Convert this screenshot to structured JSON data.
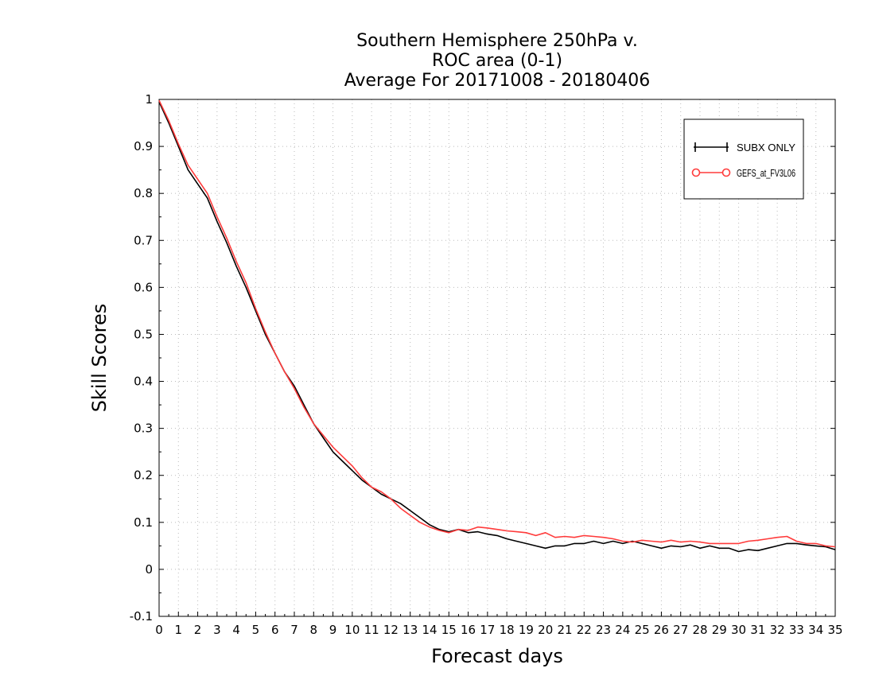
{
  "chart_data": {
    "type": "line",
    "title": [
      "Southern Hemisphere 250hPa v.",
      "ROC area (0-1)",
      "Average For 20171008 - 20180406"
    ],
    "xlabel": "Forecast days",
    "ylabel": "Skill Scores",
    "xlim": [
      0,
      35
    ],
    "ylim": [
      -0.1,
      1
    ],
    "xticks": [
      0,
      1,
      2,
      3,
      4,
      5,
      6,
      7,
      8,
      9,
      10,
      11,
      12,
      13,
      14,
      15,
      16,
      17,
      18,
      19,
      20,
      21,
      22,
      23,
      24,
      25,
      26,
      27,
      28,
      29,
      30,
      31,
      32,
      33,
      34,
      35
    ],
    "yticks": [
      -0.1,
      0,
      0.1,
      0.2,
      0.3,
      0.4,
      0.5,
      0.6,
      0.7,
      0.8,
      0.9,
      1
    ],
    "ytick_labels": [
      "-0.1",
      "0",
      "0.1",
      "0.2",
      "0.3",
      "0.4",
      "0.5",
      "0.6",
      "0.7",
      "0.8",
      "0.9",
      "1"
    ],
    "grid": true,
    "legend_position": "top-right",
    "series": [
      {
        "name": "SUBX ONLY",
        "color": "#000000",
        "marker": "plus",
        "x": [
          0,
          0.5,
          1,
          1.5,
          2,
          2.5,
          3,
          3.5,
          4,
          4.5,
          5,
          5.5,
          6,
          6.5,
          7,
          7.5,
          8,
          8.5,
          9,
          9.5,
          10,
          10.5,
          11,
          11.5,
          12,
          12.5,
          13,
          13.5,
          14,
          14.5,
          15,
          15.5,
          16,
          16.5,
          17,
          17.5,
          18,
          18.5,
          19,
          19.5,
          20,
          20.5,
          21,
          21.5,
          22,
          22.5,
          23,
          23.5,
          24,
          24.5,
          25,
          25.5,
          26,
          26.5,
          27,
          27.5,
          28,
          28.5,
          29,
          29.5,
          30,
          30.5,
          31,
          31.5,
          32,
          32.5,
          33,
          33.5,
          34,
          34.5,
          35
        ],
        "y": [
          0.995,
          0.95,
          0.9,
          0.85,
          0.82,
          0.79,
          0.74,
          0.695,
          0.645,
          0.6,
          0.55,
          0.5,
          0.46,
          0.42,
          0.39,
          0.35,
          0.31,
          0.28,
          0.25,
          0.23,
          0.21,
          0.19,
          0.175,
          0.16,
          0.15,
          0.14,
          0.125,
          0.11,
          0.095,
          0.085,
          0.08,
          0.085,
          0.078,
          0.08,
          0.075,
          0.072,
          0.065,
          0.06,
          0.055,
          0.05,
          0.045,
          0.05,
          0.05,
          0.055,
          0.055,
          0.06,
          0.055,
          0.06,
          0.055,
          0.06,
          0.055,
          0.05,
          0.045,
          0.05,
          0.048,
          0.052,
          0.045,
          0.05,
          0.045,
          0.045,
          0.038,
          0.042,
          0.04,
          0.045,
          0.05,
          0.055,
          0.055,
          0.052,
          0.05,
          0.048,
          0.042
        ]
      },
      {
        "name": "GEFS_at_FV3L06",
        "color": "#ff3b3b",
        "marker": "circle",
        "x": [
          0,
          0.5,
          1,
          1.5,
          2,
          2.5,
          3,
          3.5,
          4,
          4.5,
          5,
          5.5,
          6,
          6.5,
          7,
          7.5,
          8,
          8.5,
          9,
          9.5,
          10,
          10.5,
          11,
          11.5,
          12,
          12.5,
          13,
          13.5,
          14,
          14.5,
          15,
          15.5,
          16,
          16.5,
          17,
          17.5,
          18,
          18.5,
          19,
          19.5,
          20,
          20.5,
          21,
          21.5,
          22,
          22.5,
          23,
          23.5,
          24,
          24.5,
          25,
          25.5,
          26,
          26.5,
          27,
          27.5,
          28,
          28.5,
          29,
          29.5,
          30,
          30.5,
          31,
          31.5,
          32,
          32.5,
          33,
          33.5,
          34,
          34.5,
          35
        ],
        "y": [
          0.998,
          0.955,
          0.905,
          0.86,
          0.83,
          0.8,
          0.75,
          0.705,
          0.655,
          0.61,
          0.555,
          0.505,
          0.46,
          0.42,
          0.385,
          0.345,
          0.31,
          0.285,
          0.26,
          0.24,
          0.22,
          0.195,
          0.175,
          0.165,
          0.15,
          0.13,
          0.115,
          0.1,
          0.09,
          0.083,
          0.078,
          0.085,
          0.083,
          0.09,
          0.088,
          0.085,
          0.082,
          0.08,
          0.078,
          0.072,
          0.078,
          0.068,
          0.07,
          0.068,
          0.072,
          0.07,
          0.068,
          0.065,
          0.06,
          0.058,
          0.062,
          0.06,
          0.058,
          0.062,
          0.058,
          0.06,
          0.058,
          0.055,
          0.055,
          0.055,
          0.055,
          0.06,
          0.062,
          0.065,
          0.068,
          0.07,
          0.06,
          0.055,
          0.055,
          0.05,
          0.048
        ]
      }
    ]
  }
}
